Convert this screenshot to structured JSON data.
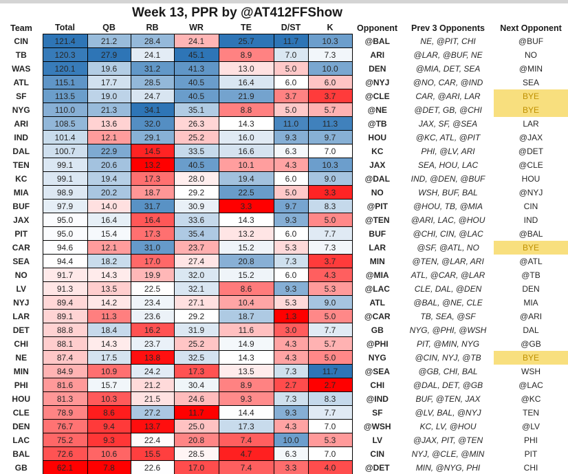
{
  "title": "Week 13, PPR by @AT412FFShow",
  "colors": {
    "heat_low": "#FF0000",
    "heat_mid": "#FFFFFF",
    "heat_high": "#2E75B6",
    "bye_bg": "#F8DF7E",
    "bye_text": "#BF9000",
    "grid_border": "#000000",
    "top_strip": "#D4D4D4"
  },
  "chart_data": {
    "type": "table",
    "subtype": "heatmap",
    "title": "Week 13, PPR by @AT412FFShow",
    "columns": [
      "Team",
      "Total",
      "QB",
      "RB",
      "WR",
      "TE",
      "D/ST",
      "K",
      "Opponent",
      "Prev 3 Opponents",
      "Next Opponent"
    ],
    "heat_columns": [
      "Total",
      "QB",
      "RB",
      "WR",
      "TE",
      "D/ST",
      "K"
    ],
    "color_scale": {
      "low_color": "#FF0000",
      "low_anchor": "column min",
      "mid_color": "#FFFFFF",
      "mid_anchor": "column median",
      "high_color": "#2E75B6",
      "high_anchor": "column max"
    },
    "bye_label": "BYE",
    "rows": [
      [
        "CIN",
        121.4,
        21.2,
        28.4,
        24.1,
        25.7,
        11.7,
        10.3,
        "@BAL",
        "NE, @PIT, CHI",
        "@BUF"
      ],
      [
        "TB",
        120.3,
        27.9,
        24.1,
        45.1,
        8.9,
        7.0,
        7.3,
        "ARI",
        "@LAR, @BUF, NE",
        "NO"
      ],
      [
        "WAS",
        120.1,
        19.6,
        31.2,
        41.3,
        13.0,
        5.0,
        10.0,
        "DEN",
        "@MIA, DET, SEA",
        "@MIN"
      ],
      [
        "ATL",
        115.1,
        17.7,
        28.5,
        40.5,
        16.4,
        6.0,
        6.0,
        "@NYJ",
        "@NO, CAR, @IND",
        "SEA"
      ],
      [
        "SF",
        113.5,
        19.0,
        24.7,
        40.5,
        21.9,
        3.7,
        3.7,
        "@CLE",
        "CAR, @ARI, LAR",
        "BYE"
      ],
      [
        "NYG",
        110.0,
        21.3,
        34.1,
        35.1,
        8.8,
        5.0,
        5.7,
        "@NE",
        "@DET, GB, @CHI",
        "BYE"
      ],
      [
        "ARI",
        108.5,
        13.6,
        32.0,
        26.3,
        14.3,
        11.0,
        11.3,
        "@TB",
        "JAX, SF, @SEA",
        "LAR"
      ],
      [
        "IND",
        101.4,
        12.1,
        29.1,
        25.2,
        16.0,
        9.3,
        9.7,
        "HOU",
        "@KC, ATL, @PIT",
        "@JAX"
      ],
      [
        "DAL",
        100.7,
        22.9,
        14.5,
        33.5,
        16.6,
        6.3,
        7.0,
        "KC",
        "PHI, @LV, ARI",
        "@DET"
      ],
      [
        "TEN",
        99.1,
        20.6,
        13.2,
        40.5,
        10.1,
        4.3,
        10.3,
        "JAX",
        "SEA, HOU, LAC",
        "@CLE"
      ],
      [
        "KC",
        99.1,
        19.4,
        17.3,
        28.0,
        19.4,
        6.0,
        9.0,
        "@DAL",
        "IND, @DEN, @BUF",
        "HOU"
      ],
      [
        "MIA",
        98.9,
        20.2,
        18.7,
        29.2,
        22.5,
        5.0,
        3.3,
        "NO",
        "WSH, BUF, BAL",
        "@NYJ"
      ],
      [
        "BUF",
        97.9,
        14.0,
        31.7,
        30.9,
        3.3,
        9.7,
        8.3,
        "@PIT",
        "@HOU, TB, @MIA",
        "CIN"
      ],
      [
        "JAX",
        95.0,
        16.4,
        16.4,
        33.6,
        14.3,
        9.3,
        5.0,
        "@TEN",
        "@ARI, LAC, @HOU",
        "IND"
      ],
      [
        "PIT",
        95.0,
        15.4,
        17.3,
        35.4,
        13.2,
        6.0,
        7.7,
        "BUF",
        "@CHI, CIN, @LAC",
        "@BAL"
      ],
      [
        "CAR",
        94.6,
        12.1,
        31.0,
        23.7,
        15.2,
        5.3,
        7.3,
        "LAR",
        "@SF, @ATL, NO",
        "BYE"
      ],
      [
        "SEA",
        94.4,
        18.2,
        17.0,
        27.4,
        20.8,
        7.3,
        3.7,
        "MIN",
        "@TEN, @LAR, ARI",
        "@ATL"
      ],
      [
        "NO",
        91.7,
        14.3,
        19.9,
        32.0,
        15.2,
        6.0,
        4.3,
        "@MIA",
        "ATL, @CAR, @LAR",
        "@TB"
      ],
      [
        "LV",
        91.3,
        13.5,
        22.5,
        32.1,
        8.6,
        9.3,
        5.3,
        "@LAC",
        "CLE, DAL, @DEN",
        "DEN"
      ],
      [
        "NYJ",
        89.4,
        14.2,
        23.4,
        27.1,
        10.4,
        5.3,
        9.0,
        "ATL",
        "@BAL, @NE, CLE",
        "MIA"
      ],
      [
        "LAR",
        89.1,
        11.3,
        23.6,
        29.2,
        18.7,
        1.3,
        5.0,
        "@CAR",
        "TB, SEA, @SF",
        "@ARI"
      ],
      [
        "DET",
        88.8,
        18.4,
        16.2,
        31.9,
        11.6,
        3.0,
        7.7,
        "GB",
        "NYG, @PHI, @WSH",
        "DAL"
      ],
      [
        "CHI",
        88.1,
        14.3,
        23.7,
        25.2,
        14.9,
        4.3,
        5.7,
        "@PHI",
        "PIT, @MIN, NYG",
        "@GB"
      ],
      [
        "NE",
        87.4,
        17.5,
        13.8,
        32.5,
        14.3,
        4.3,
        5.0,
        "NYG",
        "@CIN, NYJ, @TB",
        "BYE"
      ],
      [
        "MIN",
        84.9,
        10.9,
        24.2,
        17.3,
        13.5,
        7.3,
        11.7,
        "@SEA",
        "@GB, CHI, BAL",
        "WSH"
      ],
      [
        "PHI",
        81.6,
        15.7,
        21.2,
        30.4,
        8.9,
        2.7,
        2.7,
        "CHI",
        "@DAL, DET, @GB",
        "@LAC"
      ],
      [
        "HOU",
        81.3,
        10.3,
        21.5,
        24.6,
        9.3,
        7.3,
        8.3,
        "@IND",
        "BUF, @TEN, JAX",
        "@KC"
      ],
      [
        "CLE",
        78.9,
        8.6,
        27.2,
        11.7,
        14.4,
        9.3,
        7.7,
        "SF",
        "@LV, BAL, @NYJ",
        "TEN"
      ],
      [
        "DEN",
        76.7,
        9.4,
        13.7,
        25.0,
        17.3,
        4.3,
        7.0,
        "@WSH",
        "KC, LV, @HOU",
        "@LV"
      ],
      [
        "LAC",
        75.2,
        9.3,
        22.4,
        20.8,
        7.4,
        10.0,
        5.3,
        "LV",
        "@JAX, PIT, @TEN",
        "PHI"
      ],
      [
        "BAL",
        72.6,
        10.6,
        15.5,
        28.5,
        4.7,
        6.3,
        7.0,
        "CIN",
        "NYJ, @CLE, @MIN",
        "PIT"
      ],
      [
        "GB",
        62.1,
        7.8,
        22.6,
        17.0,
        7.4,
        3.3,
        4.0,
        "@DET",
        "MIN, @NYG, PHI",
        "CHI"
      ]
    ]
  }
}
